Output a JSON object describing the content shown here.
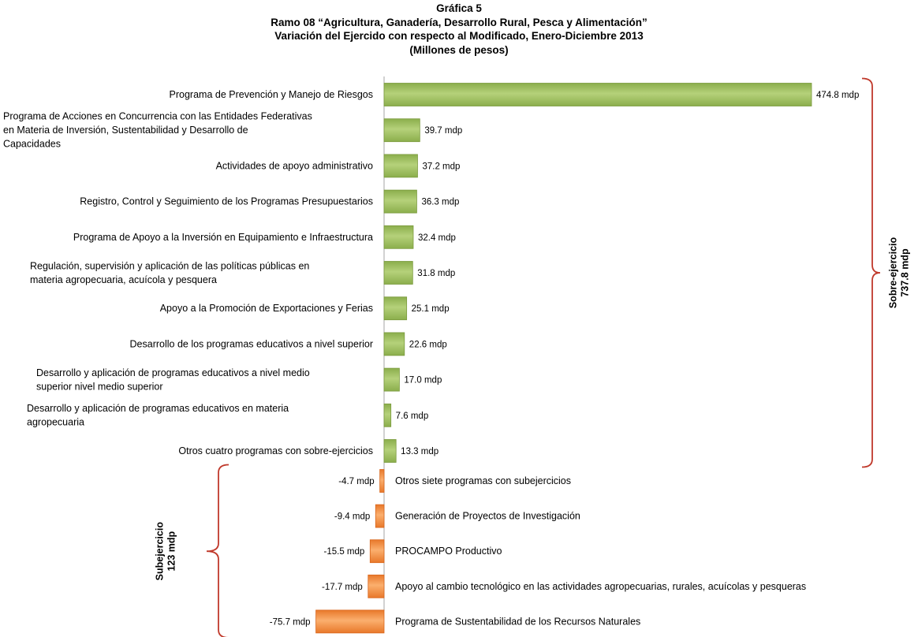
{
  "title_lines": [
    "Gráfica 5",
    "Ramo 08 “Agricultura, Ganadería, Desarrollo Rural, Pesca y Alimentación”",
    "Variación del Ejercido con respecto al Modificado, Enero-Diciembre 2013",
    "(Millones de pesos)"
  ],
  "chart_data": {
    "type": "bar",
    "orientation": "horizontal",
    "title": "Gráfica 5 — Ramo 08 “Agricultura, Ganadería, Desarrollo Rural, Pesca y Alimentación” — Variación del Ejercido con respecto al Modificado, Enero-Diciembre 2013 — (Millones de pesos)",
    "value_unit": "mdp",
    "colors": {
      "positive": "#9BBB59",
      "negative": "#F79646",
      "bracket": "#C0392B"
    },
    "categories": [
      "Programa de Prevención y Manejo de Riesgos",
      "Programa de Acciones en Concurrencia con las Entidades Federativas en Materia de Inversión, Sustentabilidad y Desarrollo de Capacidades",
      "Actividades de apoyo administrativo",
      "Registro, Control y Seguimiento de los Programas Presupuestarios",
      "Programa de Apoyo a la Inversión en Equipamiento e Infraestructura",
      "Regulación, supervisión y aplicación de las políticas públicas en materia agropecuaria, acuícola y pesquera",
      "Apoyo a la Promoción de Exportaciones y Ferias",
      "Desarrollo de los programas educativos a nivel superior",
      "Desarrollo y aplicación de programas educativos a nivel medio superior nivel medio superior",
      "Desarrollo y aplicación de programas educativos en materia agropecuaria",
      "Otros cuatro programas con sobre-ejercicios",
      "Otros siete programas con subejercicios",
      "Generación de Proyectos de Investigación",
      "PROCAMPO Productivo",
      "Apoyo al cambio tecnológico en las actividades agropecuarias, rurales, acuícolas y pesqueras",
      "Programa de Sustentabilidad de los Recursos Naturales"
    ],
    "category_lines": [
      [
        "Programa de Prevención y Manejo de Riesgos"
      ],
      [
        "Programa de Acciones en Concurrencia con las Entidades Federativas",
        "en Materia de Inversión, Sustentabilidad y Desarrollo de",
        "Capacidades"
      ],
      [
        "Actividades de apoyo administrativo"
      ],
      [
        "Registro, Control y Seguimiento de los Programas Presupuestarios"
      ],
      [
        "Programa de Apoyo a la Inversión en Equipamiento e Infraestructura"
      ],
      [
        "Regulación, supervisión y aplicación de las políticas públicas en",
        "materia agropecuaria, acuícola y pesquera"
      ],
      [
        "Apoyo a la Promoción de Exportaciones y Ferias"
      ],
      [
        "Desarrollo de los programas educativos a nivel superior"
      ],
      [
        "Desarrollo y aplicación de programas educativos a nivel medio",
        "superior nivel medio superior"
      ],
      [
        "Desarrollo y aplicación de programas educativos en materia",
        "agropecuaria"
      ],
      [
        "Otros cuatro programas con sobre-ejercicios"
      ],
      [
        "Otros siete programas con subejercicios"
      ],
      [
        "Generación de Proyectos de Investigación"
      ],
      [
        "PROCAMPO Productivo"
      ],
      [
        "Apoyo al cambio tecnológico en las actividades agropecuarias, rurales, acuícolas y pesqueras"
      ],
      [
        "Programa de Sustentabilidad de los Recursos Naturales"
      ]
    ],
    "values": [
      474.8,
      39.7,
      37.2,
      36.3,
      32.4,
      31.8,
      25.1,
      22.6,
      17.0,
      7.6,
      13.3,
      -4.7,
      -9.4,
      -15.5,
      -17.7,
      -75.7
    ],
    "value_labels": [
      "474.8 mdp",
      "39.7 mdp",
      "37.2 mdp",
      "36.3 mdp",
      "32.4 mdp",
      "31.8 mdp",
      "25.1 mdp",
      "22.6 mdp",
      "17.0 mdp",
      "7.6 mdp",
      "13.3 mdp",
      "-4.7 mdp",
      "-9.4 mdp",
      "-15.5 mdp",
      "-17.7 mdp",
      "-75.7 mdp"
    ],
    "brackets": [
      {
        "lines": [
          "Sobre-ejercicio",
          "737.8 mdp"
        ],
        "first": 0,
        "last": 10,
        "side": "right"
      },
      {
        "lines": [
          "Subejercicio",
          "123 mdp"
        ],
        "first": 11,
        "last": 15,
        "side": "left"
      }
    ]
  }
}
